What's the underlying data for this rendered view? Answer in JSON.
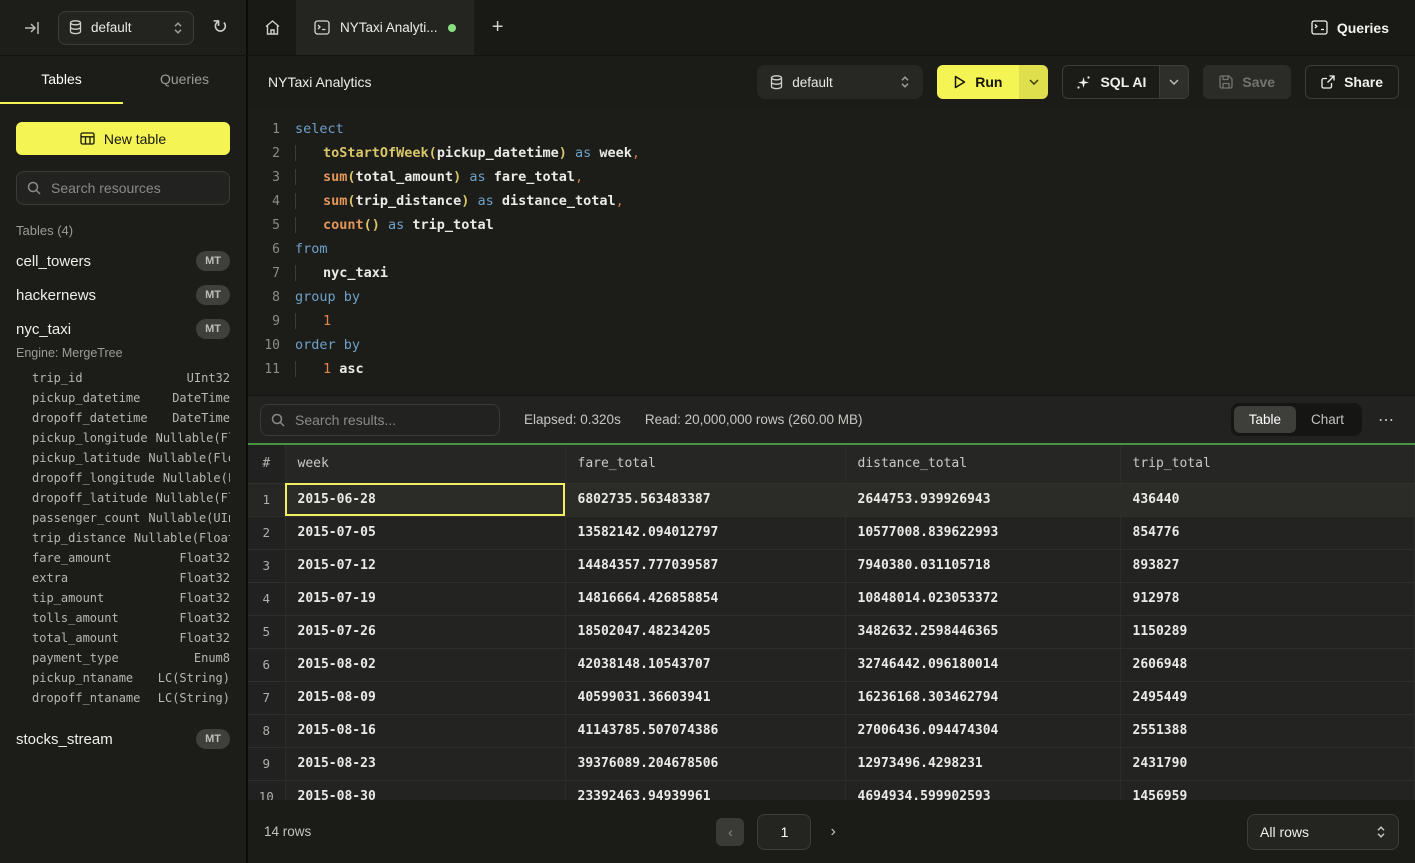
{
  "icons": {
    "refresh": "↻",
    "plus": "+",
    "more": "⋯",
    "prev": "‹",
    "next": "›"
  },
  "topbar": {
    "database": "default",
    "tab_title": "NYTaxi Analyti...",
    "queries_label": "Queries"
  },
  "sidebar": {
    "tabs": [
      {
        "label": "Tables",
        "active": true
      },
      {
        "label": "Queries",
        "active": false
      }
    ],
    "new_table_label": "New table",
    "search_placeholder": "Search resources",
    "section_label": "Tables (4)",
    "tables": [
      {
        "name": "cell_towers",
        "badge": "MT"
      },
      {
        "name": "hackernews",
        "badge": "MT"
      },
      {
        "name": "nyc_taxi",
        "badge": "MT"
      },
      {
        "name": "stocks_stream",
        "badge": "MT"
      }
    ],
    "nyc_taxi_engine": "Engine: MergeTree",
    "nyc_taxi_columns": [
      {
        "name": "trip_id",
        "type": "UInt32"
      },
      {
        "name": "pickup_datetime",
        "type": "DateTime"
      },
      {
        "name": "dropoff_datetime",
        "type": "DateTime"
      },
      {
        "name": "pickup_longitude",
        "type": "Nullable(Fl"
      },
      {
        "name": "pickup_latitude",
        "type": "Nullable(Flo"
      },
      {
        "name": "dropoff_longitude",
        "type": "Nullable(F"
      },
      {
        "name": "dropoff_latitude",
        "type": "Nullable(Fl"
      },
      {
        "name": "passenger_count",
        "type": "Nullable(UIn"
      },
      {
        "name": "trip_distance",
        "type": "Nullable(Float"
      },
      {
        "name": "fare_amount",
        "type": "Float32"
      },
      {
        "name": "extra",
        "type": "Float32"
      },
      {
        "name": "tip_amount",
        "type": "Float32"
      },
      {
        "name": "tolls_amount",
        "type": "Float32"
      },
      {
        "name": "total_amount",
        "type": "Float32"
      },
      {
        "name": "payment_type",
        "type": "Enum8"
      },
      {
        "name": "pickup_ntaname",
        "type": "LC(String)"
      },
      {
        "name": "dropoff_ntaname",
        "type": "LC(String)"
      }
    ]
  },
  "header": {
    "title": "NYTaxi Analytics",
    "database": "default",
    "run_label": "Run",
    "sql_ai_label": "SQL AI",
    "save_label": "Save",
    "share_label": "Share"
  },
  "editor": {
    "lines": [
      {
        "n": "1",
        "ind": false,
        "tokens": [
          {
            "t": "select",
            "c": "kw"
          }
        ]
      },
      {
        "n": "2",
        "ind": true,
        "tokens": [
          {
            "t": "toStartOfWeek",
            "c": "fn"
          },
          {
            "t": "(",
            "c": "pr"
          },
          {
            "t": "pickup_datetime",
            "c": "id"
          },
          {
            "t": ")",
            "c": "pr"
          },
          {
            "t": " as ",
            "c": "kw"
          },
          {
            "t": "week",
            "c": "id"
          },
          {
            "t": ",",
            "c": "pu"
          }
        ]
      },
      {
        "n": "3",
        "ind": true,
        "tokens": [
          {
            "t": "sum",
            "c": "ag"
          },
          {
            "t": "(",
            "c": "pr"
          },
          {
            "t": "total_amount",
            "c": "id"
          },
          {
            "t": ")",
            "c": "pr"
          },
          {
            "t": " as ",
            "c": "kw"
          },
          {
            "t": "fare_total",
            "c": "id"
          },
          {
            "t": ",",
            "c": "pu"
          }
        ]
      },
      {
        "n": "4",
        "ind": true,
        "tokens": [
          {
            "t": "sum",
            "c": "ag"
          },
          {
            "t": "(",
            "c": "pr"
          },
          {
            "t": "trip_distance",
            "c": "id"
          },
          {
            "t": ")",
            "c": "pr"
          },
          {
            "t": " as ",
            "c": "kw"
          },
          {
            "t": "distance_total",
            "c": "id"
          },
          {
            "t": ",",
            "c": "pu"
          }
        ]
      },
      {
        "n": "5",
        "ind": true,
        "tokens": [
          {
            "t": "count",
            "c": "ag"
          },
          {
            "t": "()",
            "c": "pr"
          },
          {
            "t": " as ",
            "c": "kw"
          },
          {
            "t": "trip_total",
            "c": "id"
          }
        ]
      },
      {
        "n": "6",
        "ind": false,
        "tokens": [
          {
            "t": "from",
            "c": "kw"
          }
        ]
      },
      {
        "n": "7",
        "ind": true,
        "tokens": [
          {
            "t": "nyc_taxi",
            "c": "id"
          }
        ]
      },
      {
        "n": "8",
        "ind": false,
        "tokens": [
          {
            "t": "group by",
            "c": "kw"
          }
        ]
      },
      {
        "n": "9",
        "ind": true,
        "tokens": [
          {
            "t": "1",
            "c": "nu"
          }
        ]
      },
      {
        "n": "10",
        "ind": false,
        "tokens": [
          {
            "t": "order by",
            "c": "kw"
          }
        ]
      },
      {
        "n": "11",
        "ind": true,
        "tokens": [
          {
            "t": "1",
            "c": "nu"
          },
          {
            "t": " ",
            "c": "pl"
          },
          {
            "t": "asc",
            "c": "id"
          }
        ]
      }
    ]
  },
  "results": {
    "search_placeholder": "Search results...",
    "elapsed": "Elapsed: 0.320s",
    "read": "Read: 20,000,000 rows (260.00 MB)",
    "view_tabs": [
      {
        "label": "Table",
        "active": true
      },
      {
        "label": "Chart",
        "active": false
      }
    ],
    "table": {
      "headers": [
        "#",
        "week",
        "fare_total",
        "distance_total",
        "trip_total"
      ],
      "rows": [
        {
          "i": "1",
          "selected": true,
          "cells": [
            "2015-06-28",
            "6802735.563483387",
            "2644753.939926943",
            "436440"
          ]
        },
        {
          "i": "2",
          "selected": false,
          "cells": [
            "2015-07-05",
            "13582142.094012797",
            "10577008.839622993",
            "854776"
          ]
        },
        {
          "i": "3",
          "selected": false,
          "cells": [
            "2015-07-12",
            "14484357.777039587",
            "7940380.031105718",
            "893827"
          ]
        },
        {
          "i": "4",
          "selected": false,
          "cells": [
            "2015-07-19",
            "14816664.426858854",
            "10848014.023053372",
            "912978"
          ]
        },
        {
          "i": "5",
          "selected": false,
          "cells": [
            "2015-07-26",
            "18502047.48234205",
            "3482632.2598446365",
            "1150289"
          ]
        },
        {
          "i": "6",
          "selected": false,
          "cells": [
            "2015-08-02",
            "42038148.10543707",
            "32746442.096180014",
            "2606948"
          ]
        },
        {
          "i": "7",
          "selected": false,
          "cells": [
            "2015-08-09",
            "40599031.36603941",
            "16236168.303462794",
            "2495449"
          ]
        },
        {
          "i": "8",
          "selected": false,
          "cells": [
            "2015-08-16",
            "41143785.507074386",
            "27006436.094474304",
            "2551388"
          ]
        },
        {
          "i": "9",
          "selected": false,
          "cells": [
            "2015-08-23",
            "39376089.204678506",
            "12973496.4298231",
            "2431790"
          ]
        },
        {
          "i": "10",
          "selected": false,
          "cells": [
            "2015-08-30",
            "23392463.94939961",
            "4694934.599902593",
            "1456959"
          ]
        }
      ]
    },
    "footer": {
      "rows_label": "14 rows",
      "page": "1",
      "page_size": "All rows"
    }
  }
}
